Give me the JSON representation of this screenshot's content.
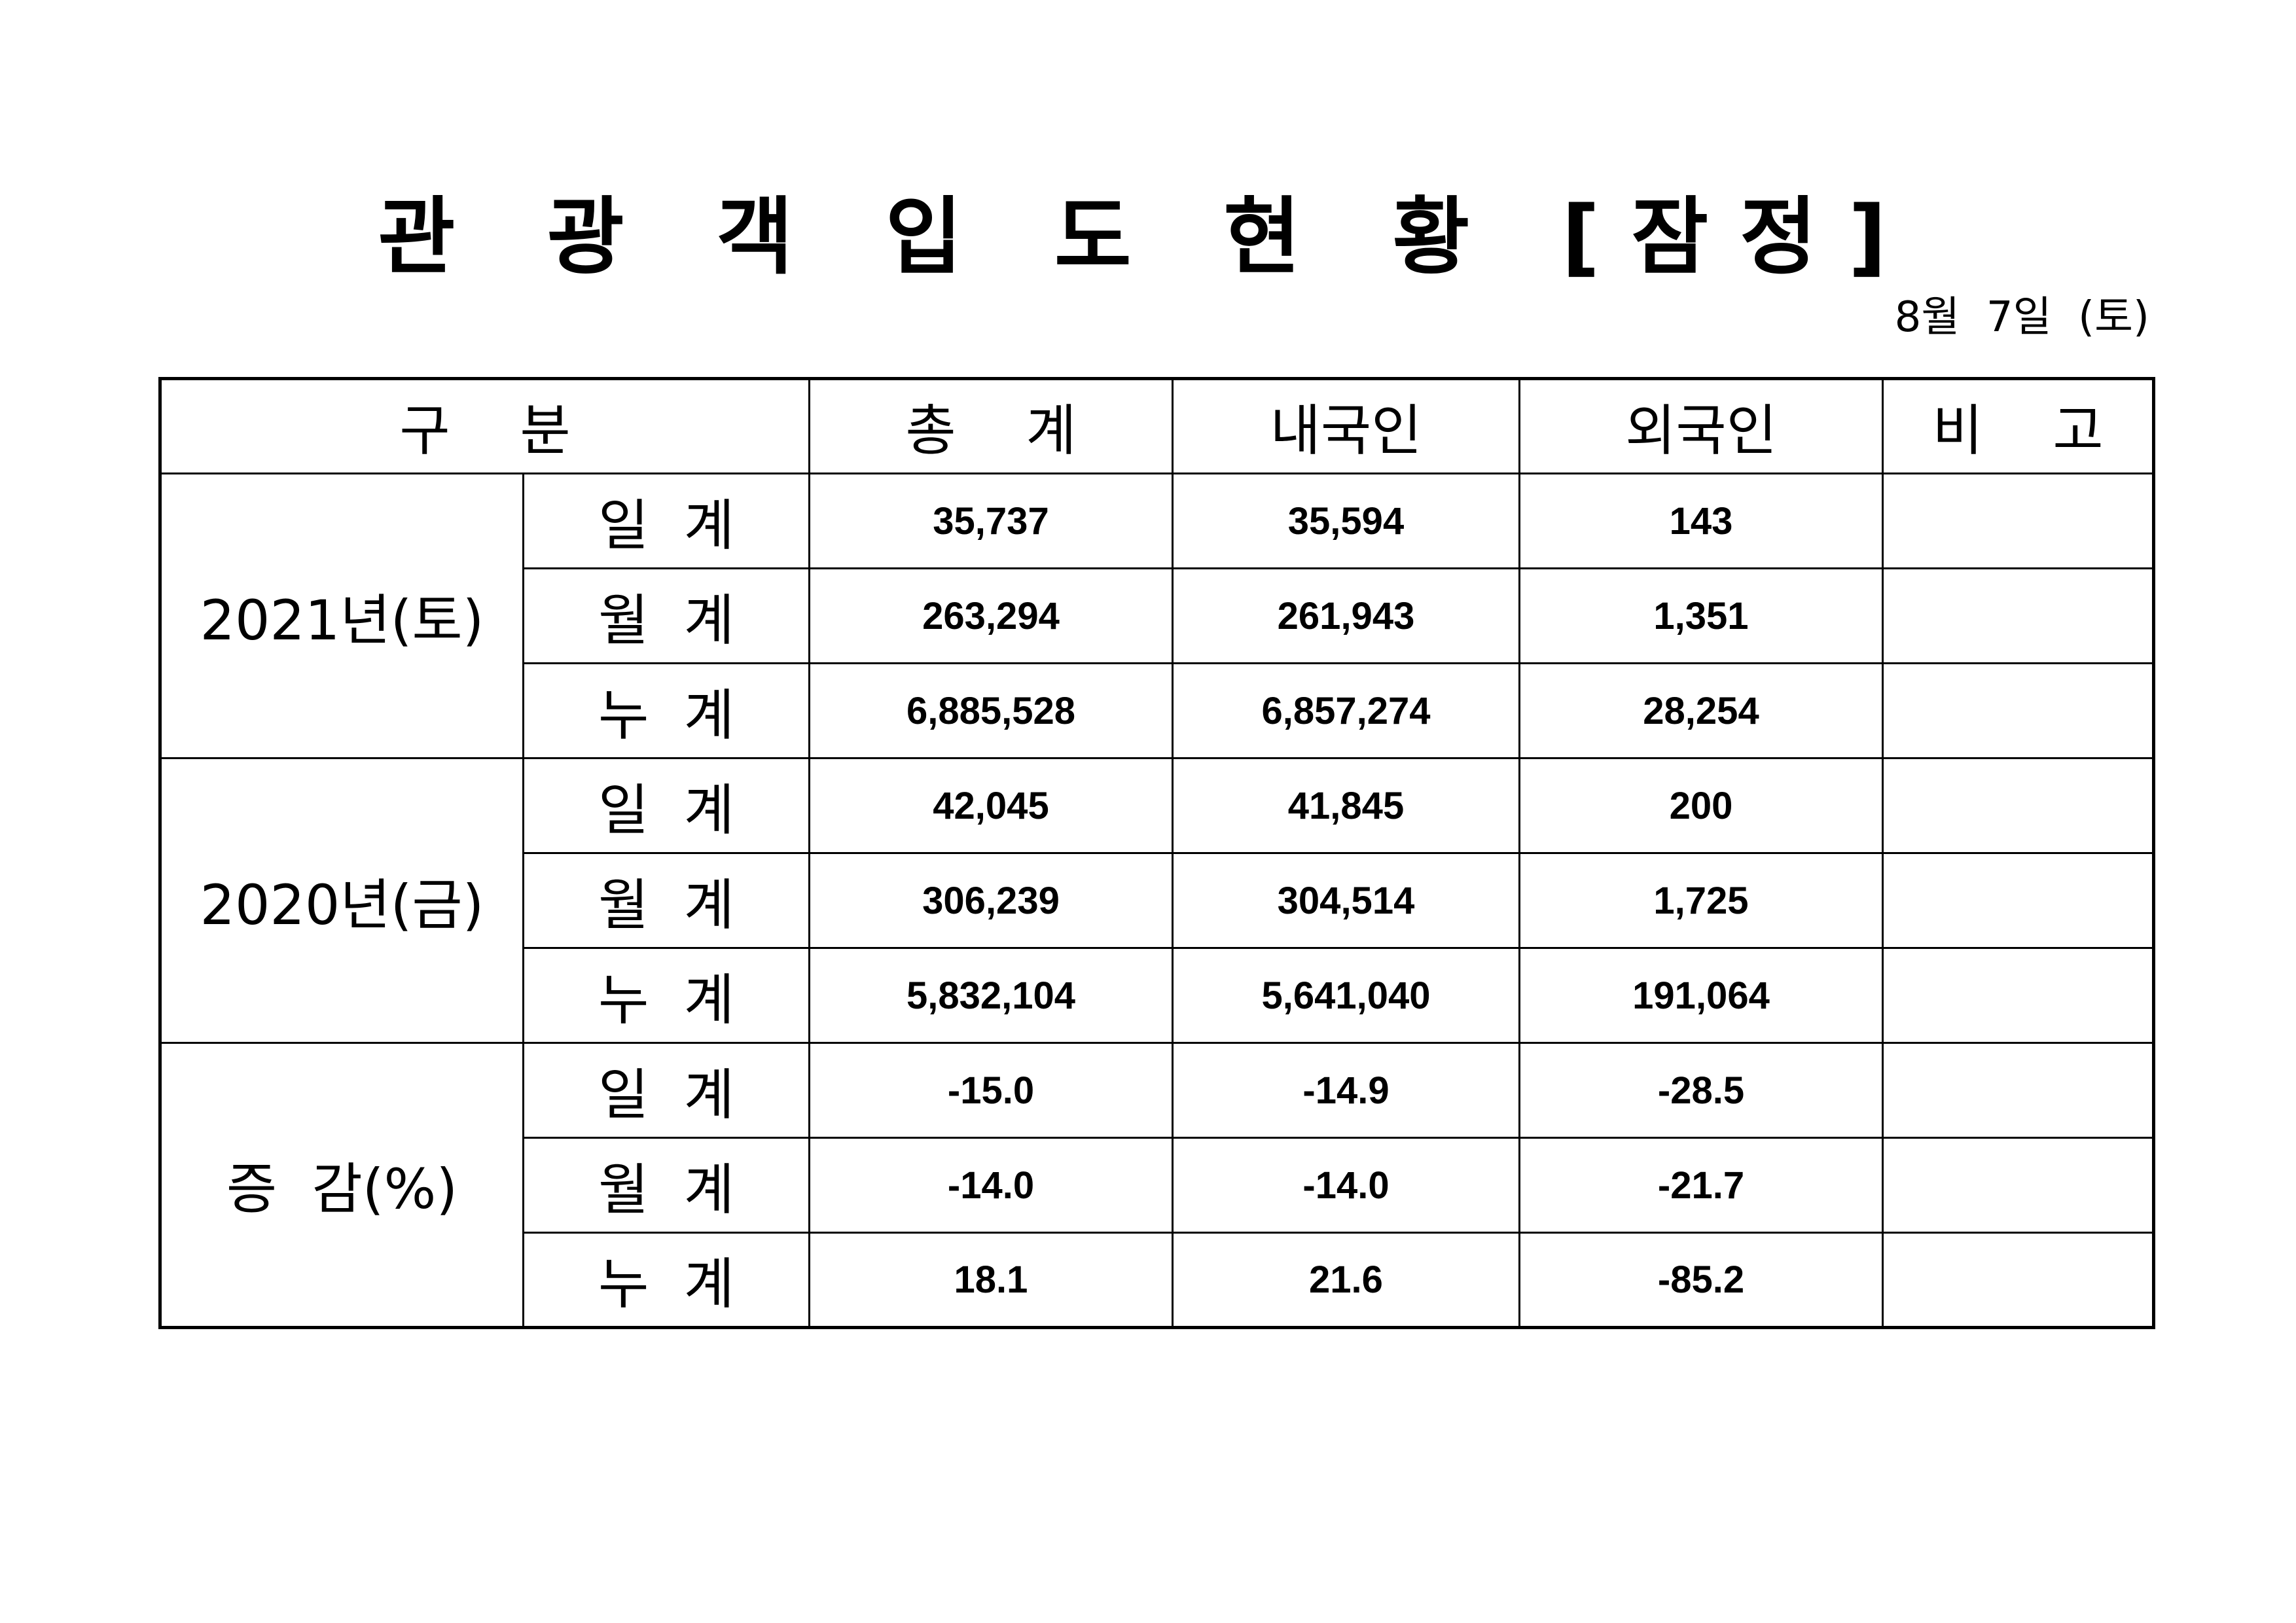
{
  "title": "관 광 객 입 도 현 황 [잠정]",
  "date": "8월  7일  (토)",
  "table": {
    "headers": {
      "category": "구    분",
      "total": "총    계",
      "domestic": "내국인",
      "foreign": "외국인",
      "note": "비    고"
    },
    "groups": [
      {
        "label": "2021년(토)",
        "rows": [
          {
            "sub": "일  계",
            "total": "35,737",
            "domestic": "35,594",
            "foreign": "143",
            "note": ""
          },
          {
            "sub": "월  계",
            "total": "263,294",
            "domestic": "261,943",
            "foreign": "1,351",
            "note": ""
          },
          {
            "sub": "누  계",
            "total": "6,885,528",
            "domestic": "6,857,274",
            "foreign": "28,254",
            "note": ""
          }
        ]
      },
      {
        "label": "2020년(금)",
        "rows": [
          {
            "sub": "일  계",
            "total": "42,045",
            "domestic": "41,845",
            "foreign": "200",
            "note": ""
          },
          {
            "sub": "월  계",
            "total": "306,239",
            "domestic": "304,514",
            "foreign": "1,725",
            "note": ""
          },
          {
            "sub": "누  계",
            "total": "5,832,104",
            "domestic": "5,641,040",
            "foreign": "191,064",
            "note": ""
          }
        ]
      },
      {
        "label": "증  감(%)",
        "rows": [
          {
            "sub": "일  계",
            "total": "-15.0",
            "domestic": "-14.9",
            "foreign": "-28.5",
            "note": ""
          },
          {
            "sub": "월  계",
            "total": "-14.0",
            "domestic": "-14.0",
            "foreign": "-21.7",
            "note": ""
          },
          {
            "sub": "누  계",
            "total": "18.1",
            "domestic": "21.6",
            "foreign": "-85.2",
            "note": ""
          }
        ]
      }
    ]
  }
}
